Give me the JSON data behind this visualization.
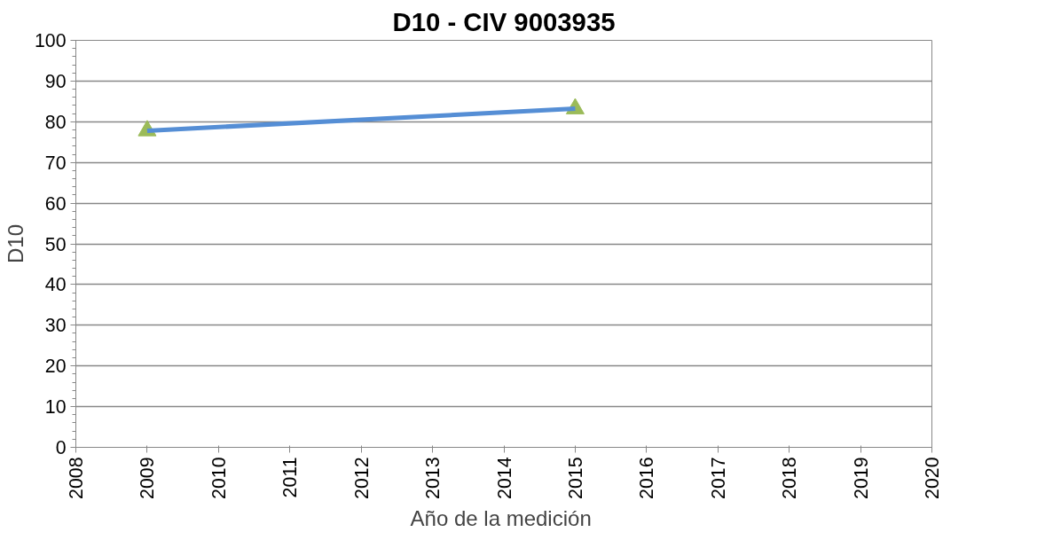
{
  "chart_data": {
    "type": "line",
    "title": "D10 - CIV 9003935",
    "xlabel": "Año de la  medición",
    "ylabel": "D10",
    "x": [
      2009,
      2015
    ],
    "series": [
      {
        "type": "scatter",
        "color": "#9bbb59",
        "marker": "triangle",
        "values": [
          77.8,
          83.2
        ]
      },
      {
        "color": "#558ed5",
        "values": [
          77.8,
          83.2
        ]
      }
    ],
    "xlim": [
      2008,
      2020
    ],
    "xticks": [
      2008,
      2009,
      2010,
      2011,
      2012,
      2013,
      2014,
      2015,
      2016,
      2017,
      2018,
      2019,
      2020
    ],
    "ylim": [
      0,
      100
    ],
    "yticks": [
      0,
      10,
      20,
      30,
      40,
      50,
      60,
      70,
      80,
      90,
      100
    ],
    "grid": "y"
  }
}
